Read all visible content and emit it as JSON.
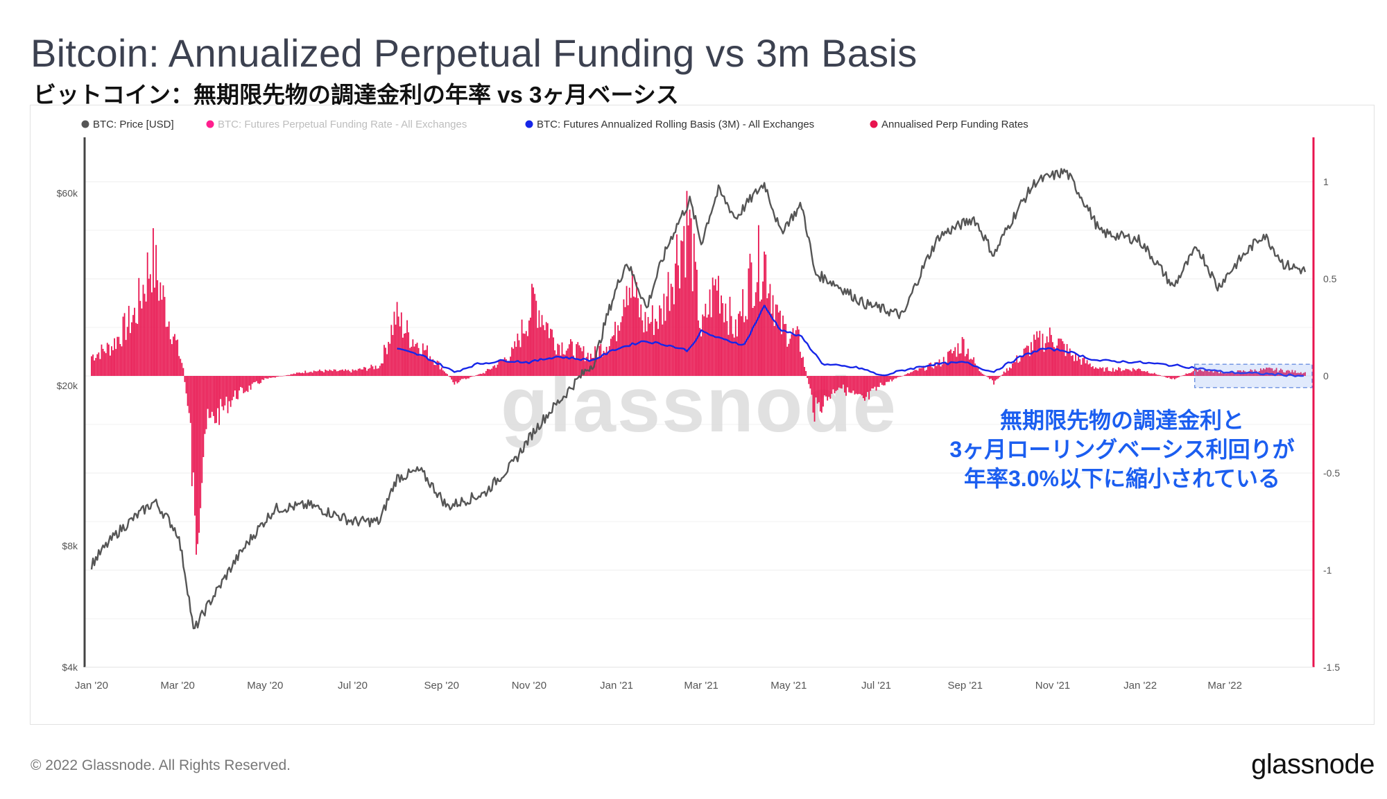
{
  "header": {
    "title": "Bitcoin: Annualized Perpetual Funding vs 3m Basis",
    "subtitle": "ビットコイン：無期限先物の調達金利の年率 vs 3ヶ月ベーシス"
  },
  "footer": {
    "copyright": "© 2022 Glassnode. All Rights Reserved.",
    "brand": "glassnode"
  },
  "annotation": {
    "lines": [
      "無期限先物の調達金利と",
      "3ヶ月ローリングベーシス利回りが",
      "年率3.0%以下に縮小されている"
    ]
  },
  "colors": {
    "price": "#555555",
    "funding_legend": "#ff1f8e",
    "basis": "#1626e8",
    "annualised": "#e8144f",
    "right_axis": "#e8144f",
    "annotation": "#1b5ef0"
  },
  "chart_data": {
    "type": "line+bar",
    "watermark": "glassnode",
    "legend": [
      {
        "name": "BTC: Price [USD]",
        "color": "#555555",
        "muted": false
      },
      {
        "name": "BTC: Futures Perpetual Funding Rate - All Exchanges",
        "color": "#ff1f8e",
        "muted": true
      },
      {
        "name": "BTC: Futures Annualized Rolling Basis (3M) - All Exchanges",
        "color": "#1626e8",
        "muted": false
      },
      {
        "name": "Annualised Perp Funding Rates",
        "color": "#e8144f",
        "muted": false
      }
    ],
    "x_range": [
      "2020-01-01",
      "2022-04-26"
    ],
    "x_ticks": [
      "Jan '20",
      "Mar '20",
      "May '20",
      "Jul '20",
      "Sep '20",
      "Nov '20",
      "Jan '21",
      "Mar '21",
      "May '21",
      "Jul '21",
      "Sep '21",
      "Nov '21",
      "Jan '22",
      "Mar '22"
    ],
    "left_axis": {
      "scale": "log",
      "ticks": [
        "$4k",
        "$8k",
        "$20k",
        "$60k"
      ],
      "tick_values": [
        4000,
        8000,
        20000,
        60000
      ],
      "range": [
        4000,
        80000
      ]
    },
    "right_axis": {
      "scale": "linear",
      "ticks": [
        "1",
        "0.5",
        "0",
        "-0.5",
        "-1",
        "-1.5"
      ],
      "tick_values": [
        1,
        0.5,
        0,
        -0.5,
        -1,
        -1.5
      ],
      "range": [
        -1.5,
        1.2
      ]
    },
    "price_usd": [
      [
        "2020-01-01",
        7200
      ],
      [
        "2020-01-20",
        8700
      ],
      [
        "2020-02-14",
        10300
      ],
      [
        "2020-03-01",
        8600
      ],
      [
        "2020-03-12",
        4900
      ],
      [
        "2020-03-31",
        6400
      ],
      [
        "2020-05-08",
        9900
      ],
      [
        "2020-06-01",
        10100
      ],
      [
        "2020-07-01",
        9200
      ],
      [
        "2020-07-20",
        9200
      ],
      [
        "2020-08-01",
        11800
      ],
      [
        "2020-08-17",
        12300
      ],
      [
        "2020-09-05",
        10000
      ],
      [
        "2020-10-01",
        10800
      ],
      [
        "2020-10-21",
        12800
      ],
      [
        "2020-11-05",
        15500
      ],
      [
        "2020-11-25",
        18800
      ],
      [
        "2020-12-17",
        23000
      ],
      [
        "2021-01-08",
        40500
      ],
      [
        "2021-01-22",
        31000
      ],
      [
        "2021-02-08",
        46500
      ],
      [
        "2021-02-21",
        57500
      ],
      [
        "2021-03-01",
        45000
      ],
      [
        "2021-03-13",
        61000
      ],
      [
        "2021-03-25",
        52000
      ],
      [
        "2021-04-14",
        63500
      ],
      [
        "2021-04-25",
        48000
      ],
      [
        "2021-05-10",
        56000
      ],
      [
        "2021-05-19",
        38000
      ],
      [
        "2021-06-01",
        36000
      ],
      [
        "2021-06-22",
        32000
      ],
      [
        "2021-07-20",
        29800
      ],
      [
        "2021-08-14",
        47000
      ],
      [
        "2021-09-07",
        52000
      ],
      [
        "2021-09-21",
        42000
      ],
      [
        "2021-10-20",
        64000
      ],
      [
        "2021-11-10",
        68000
      ],
      [
        "2021-12-04",
        48000
      ],
      [
        "2021-12-31",
        46000
      ],
      [
        "2022-01-24",
        35000
      ],
      [
        "2022-02-10",
        44000
      ],
      [
        "2022-02-24",
        35000
      ],
      [
        "2022-03-28",
        47500
      ],
      [
        "2022-04-11",
        40000
      ],
      [
        "2022-04-26",
        38500
      ]
    ],
    "basis_3m": [
      [
        "2020-08-01",
        0.14
      ],
      [
        "2020-08-20",
        0.1
      ],
      [
        "2020-09-10",
        0.02
      ],
      [
        "2020-09-25",
        0.06
      ],
      [
        "2020-10-15",
        0.08
      ],
      [
        "2020-11-01",
        0.07
      ],
      [
        "2020-11-20",
        0.1
      ],
      [
        "2020-12-15",
        0.08
      ],
      [
        "2021-01-01",
        0.14
      ],
      [
        "2021-01-20",
        0.18
      ],
      [
        "2021-02-05",
        0.16
      ],
      [
        "2021-02-20",
        0.13
      ],
      [
        "2021-03-01",
        0.23
      ],
      [
        "2021-03-15",
        0.19
      ],
      [
        "2021-03-31",
        0.16
      ],
      [
        "2021-04-14",
        0.36
      ],
      [
        "2021-04-25",
        0.24
      ],
      [
        "2021-05-10",
        0.2
      ],
      [
        "2021-05-25",
        0.06
      ],
      [
        "2021-06-20",
        0.04
      ],
      [
        "2021-07-05",
        0.0
      ],
      [
        "2021-07-20",
        0.03
      ],
      [
        "2021-08-10",
        0.06
      ],
      [
        "2021-09-01",
        0.07
      ],
      [
        "2021-09-20",
        0.02
      ],
      [
        "2021-10-10",
        0.1
      ],
      [
        "2021-10-25",
        0.14
      ],
      [
        "2021-11-10",
        0.13
      ],
      [
        "2021-12-01",
        0.08
      ],
      [
        "2021-12-31",
        0.07
      ],
      [
        "2022-01-31",
        0.05
      ],
      [
        "2022-02-28",
        0.02
      ],
      [
        "2022-03-31",
        0.01
      ],
      [
        "2022-04-26",
        0.0
      ]
    ],
    "annualised_perp_funding": [
      [
        "2020-01-01",
        0.12
      ],
      [
        "2020-01-15",
        0.18
      ],
      [
        "2020-02-01",
        0.38
      ],
      [
        "2020-02-12",
        0.72
      ],
      [
        "2020-02-22",
        0.4
      ],
      [
        "2020-03-05",
        0.05
      ],
      [
        "2020-03-10",
        -0.35
      ],
      [
        "2020-03-13",
        -1.01
      ],
      [
        "2020-03-20",
        -0.32
      ],
      [
        "2020-04-10",
        -0.12
      ],
      [
        "2020-05-01",
        -0.02
      ],
      [
        "2020-06-01",
        0.03
      ],
      [
        "2020-07-01",
        0.03
      ],
      [
        "2020-07-20",
        0.06
      ],
      [
        "2020-07-31",
        0.36
      ],
      [
        "2020-08-10",
        0.24
      ],
      [
        "2020-08-25",
        0.12
      ],
      [
        "2020-09-10",
        -0.04
      ],
      [
        "2020-10-01",
        0.02
      ],
      [
        "2020-10-21",
        0.14
      ],
      [
        "2020-11-05",
        0.46
      ],
      [
        "2020-11-20",
        0.2
      ],
      [
        "2020-12-15",
        0.12
      ],
      [
        "2020-12-31",
        0.25
      ],
      [
        "2021-01-08",
        0.62
      ],
      [
        "2021-01-20",
        0.32
      ],
      [
        "2021-02-01",
        0.36
      ],
      [
        "2021-02-12",
        0.74
      ],
      [
        "2021-02-20",
        0.96
      ],
      [
        "2021-03-01",
        0.26
      ],
      [
        "2021-03-12",
        0.58
      ],
      [
        "2021-03-25",
        0.26
      ],
      [
        "2021-04-05",
        0.62
      ],
      [
        "2021-04-14",
        0.72
      ],
      [
        "2021-04-25",
        0.3
      ],
      [
        "2021-05-08",
        0.22
      ],
      [
        "2021-05-19",
        -0.21
      ],
      [
        "2021-06-05",
        -0.06
      ],
      [
        "2021-06-22",
        -0.16
      ],
      [
        "2021-07-05",
        -0.05
      ],
      [
        "2021-07-25",
        0.02
      ],
      [
        "2021-08-15",
        0.08
      ],
      [
        "2021-08-31",
        0.2
      ],
      [
        "2021-09-10",
        0.04
      ],
      [
        "2021-09-21",
        -0.04
      ],
      [
        "2021-10-05",
        0.08
      ],
      [
        "2021-10-20",
        0.2
      ],
      [
        "2021-11-01",
        0.24
      ],
      [
        "2021-11-15",
        0.12
      ],
      [
        "2021-12-04",
        0.04
      ],
      [
        "2022-01-01",
        0.04
      ],
      [
        "2022-01-24",
        -0.02
      ],
      [
        "2022-02-10",
        0.04
      ],
      [
        "2022-03-01",
        0.02
      ],
      [
        "2022-04-01",
        0.04
      ],
      [
        "2022-04-26",
        0.02
      ]
    ]
  }
}
